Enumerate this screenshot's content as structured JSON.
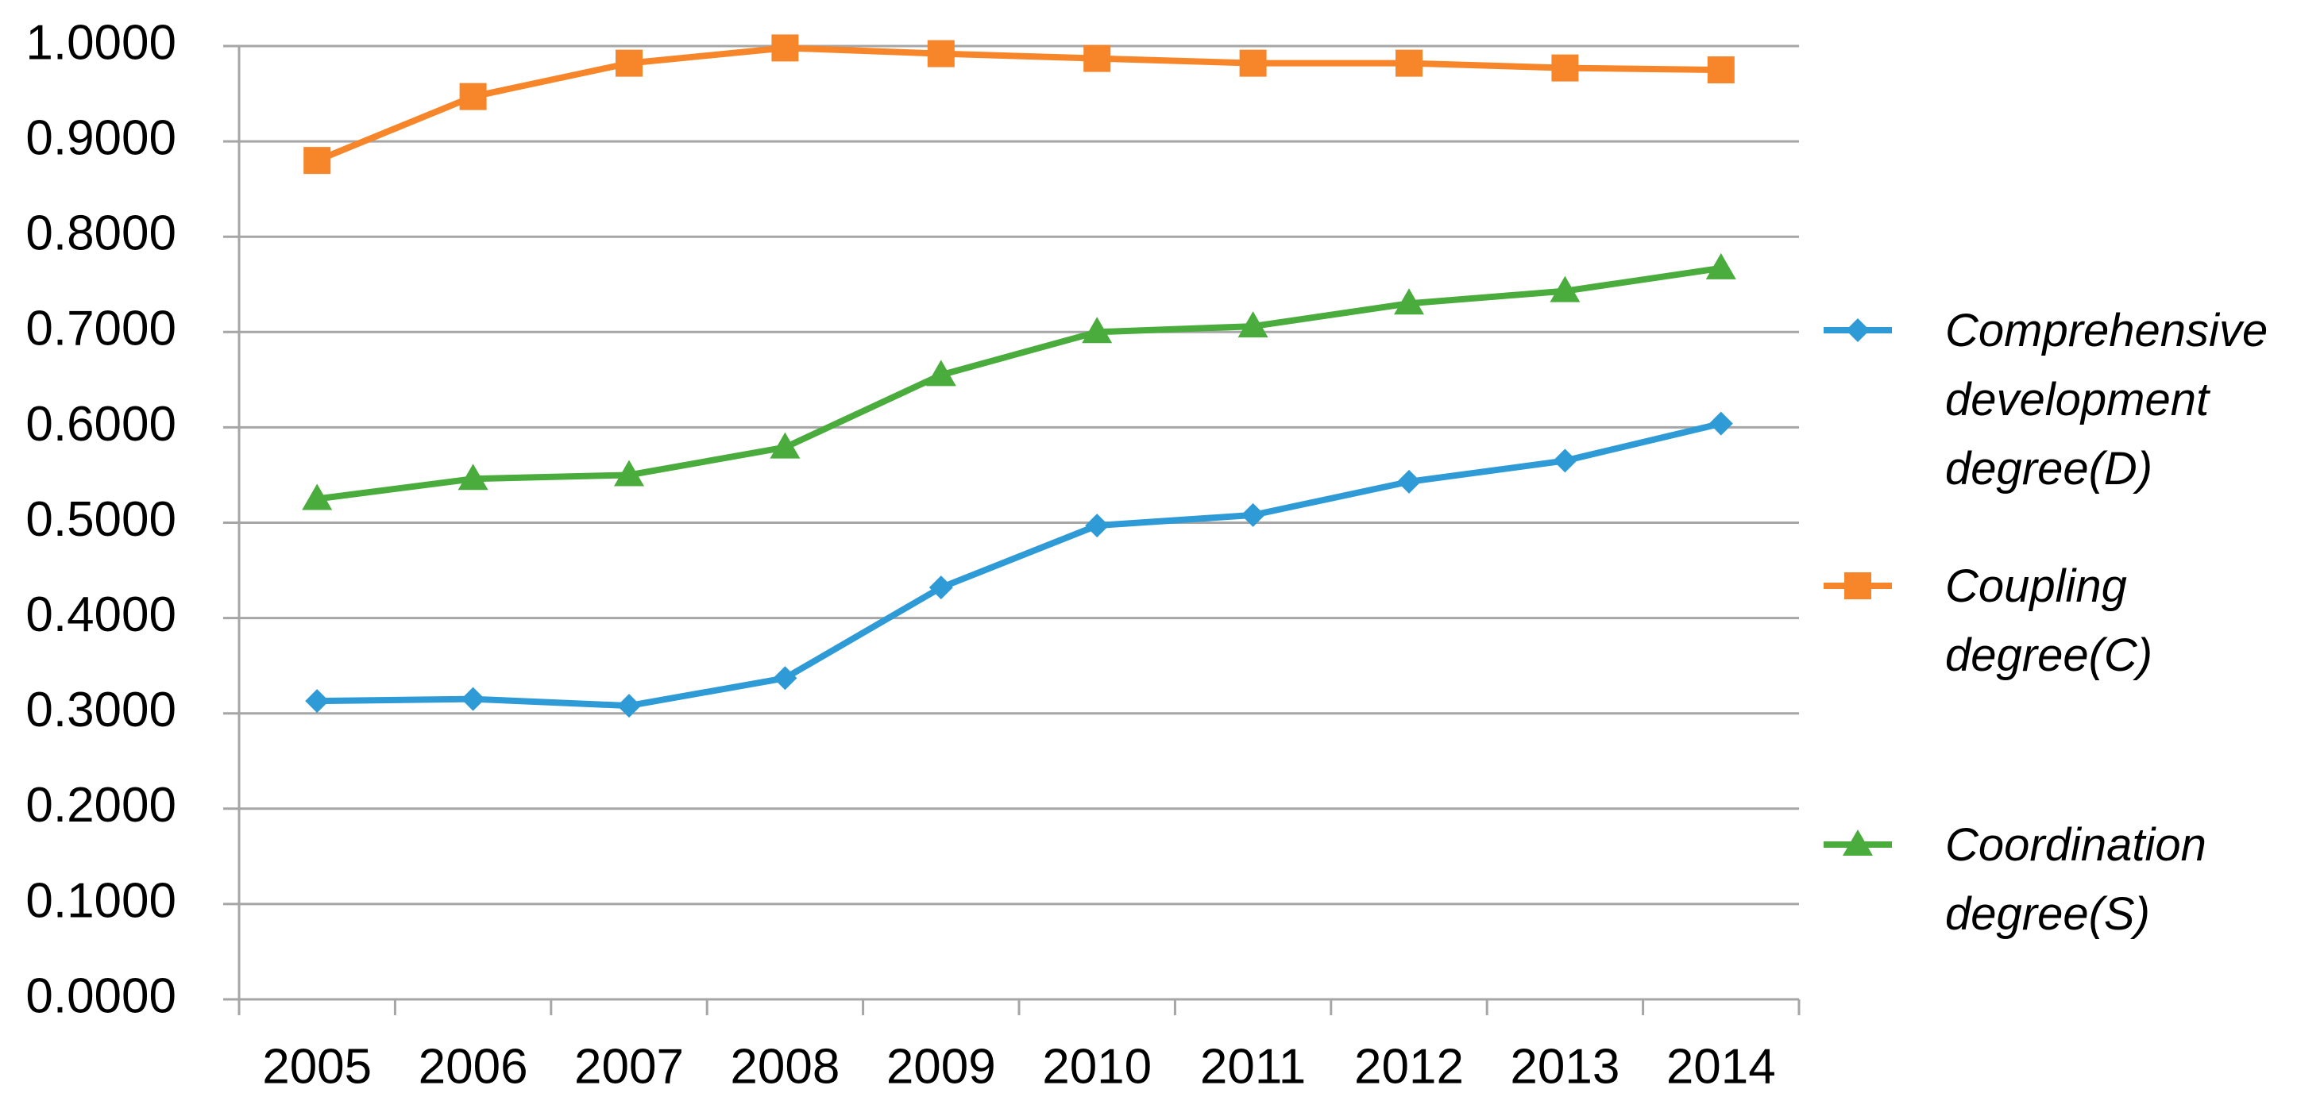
{
  "chart_data": {
    "type": "line",
    "categories": [
      "2005",
      "2006",
      "2007",
      "2008",
      "2009",
      "2010",
      "2011",
      "2012",
      "2013",
      "2014"
    ],
    "series": [
      {
        "name": "Comprehensive development degree(D)",
        "color": "#2e9bd6",
        "marker": "diamond",
        "values": [
          0.313,
          0.315,
          0.308,
          0.337,
          0.432,
          0.497,
          0.508,
          0.543,
          0.565,
          0.604
        ]
      },
      {
        "name": "Coupling degree(C)",
        "color": "#f7862a",
        "marker": "square",
        "values": [
          0.88,
          0.947,
          0.982,
          0.998,
          0.992,
          0.987,
          0.982,
          0.982,
          0.977,
          0.975
        ]
      },
      {
        "name": "Coordination degree(S)",
        "color": "#4aac3c",
        "marker": "triangle",
        "values": [
          0.525,
          0.546,
          0.55,
          0.579,
          0.655,
          0.7,
          0.706,
          0.73,
          0.743,
          0.767
        ]
      }
    ],
    "ylim": [
      0,
      1
    ],
    "yticks": [
      {
        "value": 0,
        "label": "0.0000"
      },
      {
        "value": 0.1,
        "label": "0.1000"
      },
      {
        "value": 0.2,
        "label": "0.2000"
      },
      {
        "value": 0.3,
        "label": "0.3000"
      },
      {
        "value": 0.4,
        "label": "0.4000"
      },
      {
        "value": 0.5,
        "label": "0.5000"
      },
      {
        "value": 0.6,
        "label": "0.6000"
      },
      {
        "value": 0.7,
        "label": "0.7000"
      },
      {
        "value": 0.8,
        "label": "0.8000"
      },
      {
        "value": 0.9,
        "label": "0.9000"
      },
      {
        "value": 1,
        "label": "1.0000"
      }
    ],
    "grid": true,
    "legend": "right"
  }
}
